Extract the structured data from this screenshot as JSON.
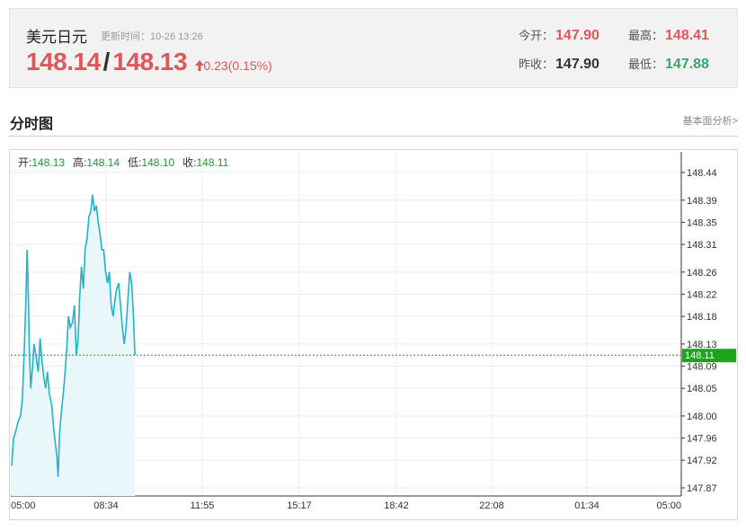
{
  "quote": {
    "name": "美元日元",
    "update_time": "更新时间：10-26 13:26",
    "bid": "148.14",
    "separator": "/",
    "ask": "148.13",
    "change": "0.23(0.15%)",
    "stats": {
      "open_label": "今开：",
      "open_value": "147.90",
      "high_label": "最高：",
      "high_value": "148.41",
      "prev_close_label": "昨收：",
      "prev_close_value": "147.90",
      "low_label": "最低：",
      "low_value": "147.88"
    }
  },
  "section": {
    "title": "分时图",
    "link": "基本面分析>"
  },
  "ohlc": {
    "open_label": "开:",
    "open_value": "148.13",
    "high_label": "高:",
    "high_value": "148.14",
    "low_label": "低:",
    "low_value": "148.10",
    "close_label": "收:",
    "close_value": "148.11"
  },
  "colors": {
    "line": "#1fb5c8",
    "fill": "#e9f7fb",
    "up": "#e0575b",
    "down": "#3aa56a",
    "last_price_tag": "#1aa51a"
  },
  "chart_data": {
    "type": "area",
    "title": "",
    "xlabel": "",
    "ylabel": "",
    "x_ticks": [
      "05:00",
      "08:34",
      "11:55",
      "15:17",
      "18:42",
      "22:08",
      "01:34",
      "05:00"
    ],
    "y_ticks": [
      "148.44",
      "148.39",
      "148.35",
      "148.31",
      "148.26",
      "148.22",
      "148.18",
      "148.13",
      "148.09",
      "148.05",
      "148.00",
      "147.96",
      "147.92",
      "147.87"
    ],
    "ylim": [
      147.87,
      148.44
    ],
    "x_range_minutes": [
      0,
      1440
    ],
    "last_price": "148.11",
    "grid": true,
    "series": [
      {
        "points": [
          [
            0,
            147.91
          ],
          [
            4,
            147.96
          ],
          [
            8,
            147.97
          ],
          [
            14,
            147.99
          ],
          [
            19,
            148.0
          ],
          [
            23,
            148.03
          ],
          [
            27,
            148.12
          ],
          [
            31,
            148.22
          ],
          [
            33,
            148.3
          ],
          [
            35,
            148.25
          ],
          [
            38,
            148.12
          ],
          [
            41,
            148.05
          ],
          [
            45,
            148.09
          ],
          [
            48,
            148.13
          ],
          [
            52,
            148.11
          ],
          [
            57,
            148.08
          ],
          [
            61,
            148.14
          ],
          [
            65,
            148.1
          ],
          [
            69,
            148.07
          ],
          [
            73,
            148.05
          ],
          [
            77,
            148.08
          ],
          [
            81,
            148.04
          ],
          [
            86,
            148.02
          ],
          [
            90,
            147.98
          ],
          [
            94,
            147.95
          ],
          [
            97,
            147.93
          ],
          [
            100,
            147.89
          ],
          [
            103,
            147.97
          ],
          [
            107,
            148.01
          ],
          [
            111,
            148.04
          ],
          [
            115,
            148.08
          ],
          [
            119,
            148.13
          ],
          [
            122,
            148.18
          ],
          [
            126,
            148.16
          ],
          [
            131,
            148.17
          ],
          [
            135,
            148.2
          ],
          [
            139,
            148.11
          ],
          [
            143,
            148.14
          ],
          [
            146,
            148.21
          ],
          [
            150,
            148.27
          ],
          [
            154,
            148.23
          ],
          [
            158,
            148.3
          ],
          [
            162,
            148.32
          ],
          [
            166,
            148.36
          ],
          [
            170,
            148.37
          ],
          [
            174,
            148.4
          ],
          [
            178,
            148.37
          ],
          [
            182,
            148.38
          ],
          [
            186,
            148.35
          ],
          [
            190,
            148.33
          ],
          [
            194,
            148.3
          ],
          [
            198,
            148.3
          ],
          [
            202,
            148.26
          ],
          [
            206,
            148.24
          ],
          [
            210,
            148.26
          ],
          [
            214,
            148.2
          ],
          [
            218,
            148.18
          ],
          [
            222,
            148.21
          ],
          [
            226,
            148.23
          ],
          [
            230,
            148.24
          ],
          [
            234,
            148.2
          ],
          [
            238,
            148.16
          ],
          [
            242,
            148.13
          ],
          [
            246,
            148.16
          ],
          [
            250,
            148.21
          ],
          [
            254,
            148.26
          ],
          [
            258,
            148.24
          ],
          [
            262,
            148.18
          ],
          [
            265,
            148.11
          ]
        ]
      }
    ]
  }
}
